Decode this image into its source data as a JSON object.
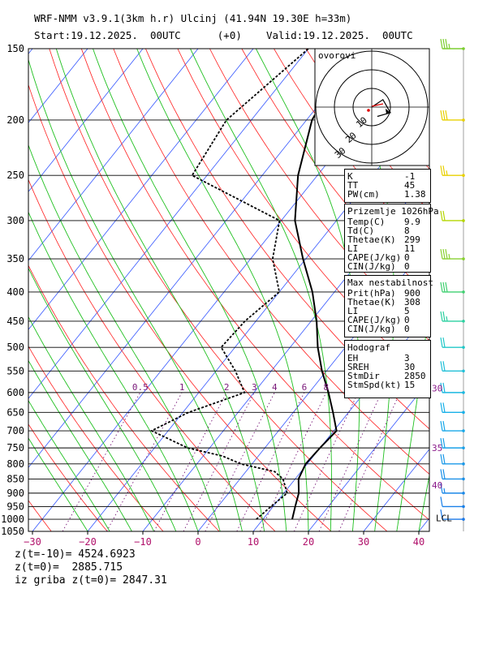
{
  "header": {
    "line1": "WRF-NMM v3.9.1(3km h.r) Ulcinj (41.94N 19.30E  h=33m)",
    "line2": "Start:19.12.2025.  00UTC      (+0)    Valid:19.12.2025.  00UTC"
  },
  "chart_data": {
    "type": "line",
    "ylabel": "",
    "xlabel": "",
    "pressure_ticks": [
      150,
      200,
      250,
      300,
      350,
      400,
      450,
      500,
      550,
      600,
      650,
      700,
      750,
      800,
      850,
      900,
      950,
      1000,
      1050
    ],
    "temp_ticks": [
      -30,
      -20,
      -10,
      0,
      10,
      20,
      30,
      40
    ],
    "mixing_ratio_labels": [
      "0.5",
      "1",
      "2",
      "3",
      "4",
      "6",
      "8"
    ],
    "mixing_ratio_p": 600,
    "series": [
      {
        "p": [
          1000,
          950,
          900,
          850,
          800,
          750,
          700,
          650,
          600,
          550,
          500,
          450,
          400,
          350,
          300,
          250,
          200,
          150
        ],
        "t": [
          15.3,
          14,
          12.7,
          10.6,
          9.7,
          10,
          10.5,
          7.2,
          3.5,
          -0.8,
          -5,
          -9,
          -14,
          -20.5,
          -27.5,
          -33.5,
          -39,
          -42
        ]
      },
      {
        "p": [
          1000,
          950,
          900,
          850,
          825,
          800,
          775,
          750,
          700,
          650,
          600,
          550,
          500,
          450,
          400,
          350,
          300,
          250,
          200,
          150
        ],
        "t": [
          8.8,
          9.6,
          10.6,
          7.8,
          5.2,
          -2,
          -6.5,
          -14,
          -23,
          -19,
          -11.7,
          -16.5,
          -22.5,
          -22,
          -20,
          -26,
          -30.3,
          -52.7,
          -54.5,
          -50
        ]
      }
    ],
    "hodograph": {
      "label": "ovorovi",
      "ring_labels": [
        "10",
        "20",
        "30"
      ],
      "points": [
        [
          0,
          0
        ],
        [
          6,
          4
        ],
        [
          10,
          -3
        ],
        [
          3,
          -5
        ]
      ]
    },
    "wind_kts_labels": [
      {
        "text": "30",
        "p": 590
      },
      {
        "text": "35",
        "p": 750
      },
      {
        "text": "40",
        "p": 872
      }
    ],
    "lcl_label": "LCL",
    "lcl_p": 995,
    "winds": [
      {
        "p": 150,
        "color": "#7ccd30",
        "barbs": 3.5
      },
      {
        "p": 200,
        "color": "#e8d000",
        "barbs": 3
      },
      {
        "p": 250,
        "color": "#e8d000",
        "barbs": 2.5
      },
      {
        "p": 300,
        "color": "#b5d600",
        "barbs": 2
      },
      {
        "p": 350,
        "color": "#88d030",
        "barbs": 3.5
      },
      {
        "p": 400,
        "color": "#3fd070",
        "barbs": 3
      },
      {
        "p": 450,
        "color": "#2ad0a0",
        "barbs": 2.5
      },
      {
        "p": 500,
        "color": "#22c8c8",
        "barbs": 2
      },
      {
        "p": 550,
        "color": "#22c0d8",
        "barbs": 2
      },
      {
        "p": 600,
        "color": "#1ab8e0",
        "barbs": 2
      },
      {
        "p": 650,
        "color": "#18b0e8",
        "barbs": 2
      },
      {
        "p": 700,
        "color": "#18a8e8",
        "barbs": 2
      },
      {
        "p": 750,
        "color": "#1aa0e8",
        "barbs": 2
      },
      {
        "p": 800,
        "color": "#1a98e8",
        "barbs": 2
      },
      {
        "p": 850,
        "color": "#1a90e8",
        "barbs": 2
      },
      {
        "p": 900,
        "color": "#1a88e8",
        "barbs": 1.5
      },
      {
        "p": 950,
        "color": "#1a80e8",
        "barbs": 1
      },
      {
        "p": 1000,
        "color": "#1a78e8",
        "barbs": 1
      }
    ]
  },
  "indices": {
    "box1": [
      {
        "label": "K",
        "value": "-1"
      },
      {
        "label": "TT",
        "value": "45"
      },
      {
        "label": "PW(cm)",
        "value": "1.38"
      }
    ],
    "box2_title": "Prizemlje 1026hPa",
    "box2": [
      {
        "label": "Temp(C)",
        "value": "9.9"
      },
      {
        "label": "Td(C)",
        "value": "8"
      },
      {
        "label": "Thetae(K)",
        "value": "299"
      },
      {
        "label": "LI",
        "value": "11"
      },
      {
        "label": "CAPE(J/kg)",
        "value": "0"
      },
      {
        "label": "CIN(J/kg)",
        "value": "0"
      }
    ],
    "box3_title": "Max nestabilnost",
    "box3": [
      {
        "label": "Prit(hPa)",
        "value": "900"
      },
      {
        "label": "Thetae(K)",
        "value": "308"
      },
      {
        "label": "LI",
        "value": "5"
      },
      {
        "label": "CAPE(J/kg)",
        "value": "0"
      },
      {
        "label": "CIN(J/kg)",
        "value": "0"
      }
    ],
    "box4_title": "Hodograf",
    "box4": [
      {
        "label": "EH",
        "value": "3"
      },
      {
        "label": "SREH",
        "value": "30"
      },
      {
        "label": "StmDir",
        "value": "2850"
      },
      {
        "label": "StmSpd(kt)",
        "value": "15"
      }
    ]
  },
  "footer": {
    "line1": "z(t=-10)= 4524.6923",
    "line2": "z(t=0)=  2885.715",
    "line3": "iz griba z(t=0)= 2847.31"
  },
  "colors": {
    "isotherm": "#3355ff",
    "dry_adiabat": "#ff2020",
    "moist_adiabat": "#20c020",
    "mixing_ratio": "#7a1a7a",
    "temp_label": "#b0106a"
  }
}
